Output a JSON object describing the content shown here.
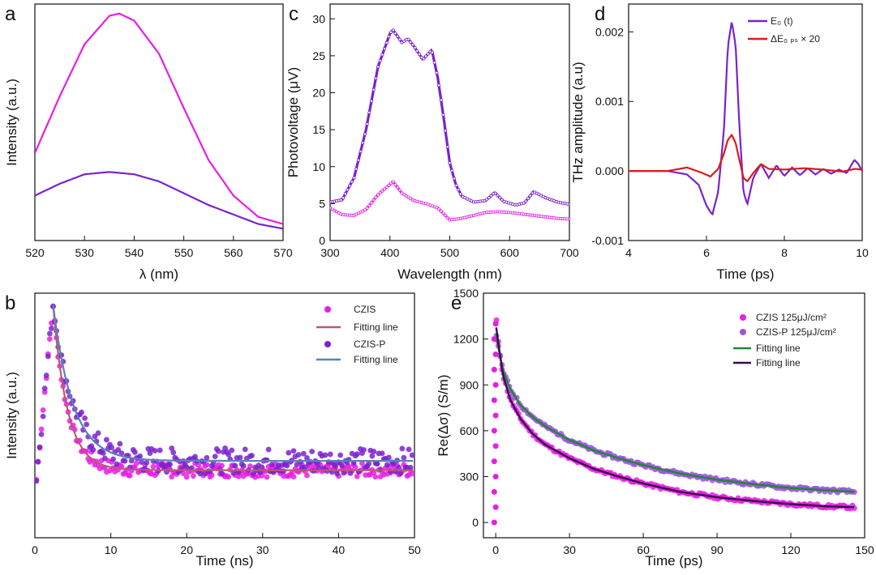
{
  "figure": {
    "colors": {
      "magenta": "#e61ee6",
      "purple": "#7a22cc",
      "red": "#e0191b",
      "green": "#1f8a2a",
      "dark_purple": "#3a0a4a",
      "fit_pink": "#b85c6e",
      "fit_blue": "#5b82b8"
    }
  },
  "chart_data": [
    {
      "id": "a",
      "panel_label": "a",
      "type": "line",
      "xlabel": "λ (nm)",
      "ylabel": "Intensity (a.u.)",
      "xlim": [
        520,
        570
      ],
      "ylim": [
        0,
        1
      ],
      "xticks": [
        "520",
        "530",
        "540",
        "550",
        "560",
        "570"
      ],
      "yticks": [],
      "series": [
        {
          "name": "magenta",
          "color": "#e61ee6",
          "x": [
            520,
            525,
            530,
            535,
            537,
            540,
            545,
            550,
            555,
            560,
            565,
            570
          ],
          "y": [
            0.37,
            0.61,
            0.83,
            0.95,
            0.96,
            0.93,
            0.79,
            0.56,
            0.34,
            0.19,
            0.1,
            0.07
          ]
        },
        {
          "name": "purple",
          "color": "#7a22cc",
          "x": [
            520,
            525,
            530,
            535,
            540,
            545,
            550,
            555,
            560,
            565,
            570
          ],
          "y": [
            0.19,
            0.24,
            0.28,
            0.29,
            0.28,
            0.25,
            0.2,
            0.15,
            0.11,
            0.07,
            0.05
          ]
        }
      ]
    },
    {
      "id": "c",
      "panel_label": "c",
      "type": "line",
      "xlabel": "Wavelength (nm)",
      "ylabel": "Photovoltage (μV)",
      "xlim": [
        300,
        700
      ],
      "ylim": [
        0,
        32
      ],
      "xticks": [
        "300",
        "400",
        "500",
        "600",
        "700"
      ],
      "yticks": [
        "0",
        "5",
        "10",
        "15",
        "20",
        "25",
        "30"
      ],
      "series": [
        {
          "name": "purple",
          "color": "#7a22cc",
          "x": [
            300,
            320,
            340,
            360,
            380,
            400,
            405,
            420,
            430,
            440,
            455,
            470,
            480,
            490,
            500,
            510,
            520,
            540,
            560,
            575,
            590,
            610,
            625,
            640,
            660,
            680,
            700
          ],
          "y": [
            5.2,
            5.5,
            8.5,
            15,
            23.5,
            28,
            28.5,
            26.8,
            27.3,
            26.3,
            24.5,
            25.8,
            22,
            16.5,
            10.5,
            7.6,
            6,
            5.2,
            5.4,
            6.5,
            5.3,
            4.8,
            5.1,
            6.6,
            5.8,
            5.2,
            4.9
          ]
        },
        {
          "name": "magenta",
          "color": "#e61ee6",
          "x": [
            300,
            320,
            340,
            360,
            380,
            400,
            405,
            420,
            440,
            460,
            480,
            500,
            520,
            540,
            560,
            580,
            600,
            620,
            640,
            660,
            680,
            700
          ],
          "y": [
            4.4,
            3.5,
            3.4,
            4.2,
            6.2,
            7.6,
            8,
            6.4,
            5.4,
            5.0,
            4.4,
            2.8,
            3.0,
            3.4,
            3.8,
            3.9,
            3.8,
            3.6,
            3.4,
            3.2,
            3.0,
            2.9
          ]
        }
      ]
    },
    {
      "id": "d",
      "panel_label": "d",
      "type": "line",
      "xlabel": "Time (ps)",
      "ylabel": "THz amplitude (a.u)",
      "xlim": [
        4,
        10
      ],
      "ylim": [
        -0.001,
        0.0024
      ],
      "xticks": [
        "4",
        "6",
        "8",
        "10"
      ],
      "yticks": [
        "-0.001",
        "0.000",
        "0.001",
        "0.002"
      ],
      "legend": [
        "E₀ (t)",
        "ΔE₀ ₚₛ × 20"
      ],
      "series": [
        {
          "name": "E₀ (t)",
          "color": "#7a22cc",
          "x": [
            4,
            5,
            5.5,
            5.8,
            6.0,
            6.15,
            6.3,
            6.45,
            6.55,
            6.65,
            6.75,
            6.85,
            6.95,
            7.05,
            7.2,
            7.4,
            7.6,
            7.8,
            8.0,
            8.2,
            8.4,
            8.6,
            8.8,
            9.0,
            9.2,
            9.4,
            9.6,
            9.8,
            9.9,
            10
          ],
          "y": [
            0,
            0,
            -5e-05,
            -0.0002,
            -0.0005,
            -0.00063,
            -0.0003,
            0.0006,
            0.0018,
            0.00215,
            0.0018,
            0.0006,
            -0.0003,
            -0.00048,
            -0.0001,
            0.0001,
            -0.0001,
            8e-05,
            -7e-05,
            5e-05,
            -6e-05,
            4e-05,
            -5e-05,
            3e-05,
            -4e-05,
            2e-05,
            -3e-05,
            0.00016,
            0.0001,
            0
          ]
        },
        {
          "name": "ΔE₀ ₚₛ × 20",
          "color": "#e0191b",
          "x": [
            4,
            5,
            5.5,
            5.9,
            6.1,
            6.3,
            6.45,
            6.55,
            6.65,
            6.75,
            6.85,
            6.95,
            7.05,
            7.2,
            7.4,
            7.6,
            8.0,
            8.5,
            9.0,
            9.5,
            9.8,
            10
          ],
          "y": [
            0,
            0,
            5e-05,
            -3e-05,
            -8e-05,
            3e-05,
            0.00025,
            0.00045,
            0.00052,
            0.0004,
            0.00015,
            -0.0001,
            -0.00015,
            -3e-05,
            0.0001,
            3e-05,
            2e-05,
            4e-05,
            2e-05,
            -1e-05,
            3e-05,
            2e-05
          ]
        }
      ]
    },
    {
      "id": "b",
      "panel_label": "b",
      "type": "scatter",
      "xlabel": "Time (ns)",
      "ylabel": "Intensity (a.u.)",
      "xlim": [
        0,
        50
      ],
      "ylim": [
        0,
        1.05
      ],
      "xticks": [
        "0",
        "10",
        "20",
        "30",
        "40",
        "50"
      ],
      "yticks": [],
      "legend": [
        "CZIS",
        "Fitting line",
        "CZIS-P",
        "Fitting line"
      ],
      "series": [
        {
          "name": "CZIS",
          "color": "#e61ee6",
          "peak": 1.0,
          "baseline": 0.29,
          "tau": 1.9,
          "noise": 0.03
        },
        {
          "name": "Fitting line",
          "color": "#b85c6e",
          "peak": 1.0,
          "baseline": 0.29,
          "tau": 1.9
        },
        {
          "name": "CZIS-P",
          "color": "#7a22cc",
          "peak": 1.0,
          "baseline": 0.33,
          "tau": 2.6,
          "noise": 0.055
        },
        {
          "name": "Fitting line",
          "color": "#5b82b8",
          "peak": 1.0,
          "baseline": 0.33,
          "tau": 2.6
        }
      ]
    },
    {
      "id": "e",
      "panel_label": "e",
      "type": "scatter",
      "xlabel": "Time (ps)",
      "ylabel": "Re(Δσ) (S/m)",
      "xlim": [
        -5,
        150
      ],
      "ylim": [
        -100,
        1500
      ],
      "xticks": [
        "0",
        "30",
        "60",
        "90",
        "120",
        "150"
      ],
      "yticks": [
        "0",
        "300",
        "600",
        "900",
        "1200",
        "1500"
      ],
      "legend": [
        "CZIS  125μJ/cm²",
        "CZIS-P  125μJ/cm²",
        "Fitting line",
        "Fitting line"
      ],
      "series": [
        {
          "name": "CZIS  125μJ/cm²",
          "color": "#e61ee6",
          "x": [
            0,
            1,
            3,
            6,
            10,
            15,
            20,
            30,
            40,
            50,
            60,
            75,
            90,
            105,
            120,
            135,
            146
          ],
          "y": [
            1380,
            1180,
            960,
            800,
            680,
            580,
            510,
            420,
            350,
            300,
            255,
            200,
            165,
            140,
            120,
            105,
            100
          ]
        },
        {
          "name": "CZIS-P  125μJ/cm²",
          "color": "#9b55e0",
          "x": [
            0,
            1,
            3,
            6,
            10,
            15,
            20,
            30,
            40,
            50,
            60,
            75,
            90,
            105,
            120,
            135,
            146
          ],
          "y": [
            1260,
            1150,
            990,
            870,
            770,
            690,
            630,
            540,
            470,
            420,
            375,
            320,
            280,
            250,
            225,
            210,
            200
          ]
        },
        {
          "name": "Fitting line",
          "color": "#1f8a2a",
          "x": [
            0,
            1,
            3,
            6,
            10,
            15,
            20,
            30,
            40,
            50,
            60,
            75,
            90,
            105,
            120,
            135,
            146
          ],
          "y": [
            1260,
            1150,
            990,
            870,
            770,
            690,
            630,
            540,
            470,
            420,
            375,
            320,
            280,
            250,
            225,
            210,
            200
          ]
        },
        {
          "name": "Fitting line",
          "color": "#3a0a4a",
          "x": [
            0,
            1,
            3,
            6,
            10,
            15,
            20,
            30,
            40,
            50,
            60,
            75,
            90,
            105,
            120,
            135,
            146
          ],
          "y": [
            1300,
            1180,
            960,
            800,
            680,
            580,
            510,
            420,
            350,
            300,
            255,
            200,
            165,
            140,
            120,
            105,
            100
          ]
        }
      ]
    }
  ]
}
